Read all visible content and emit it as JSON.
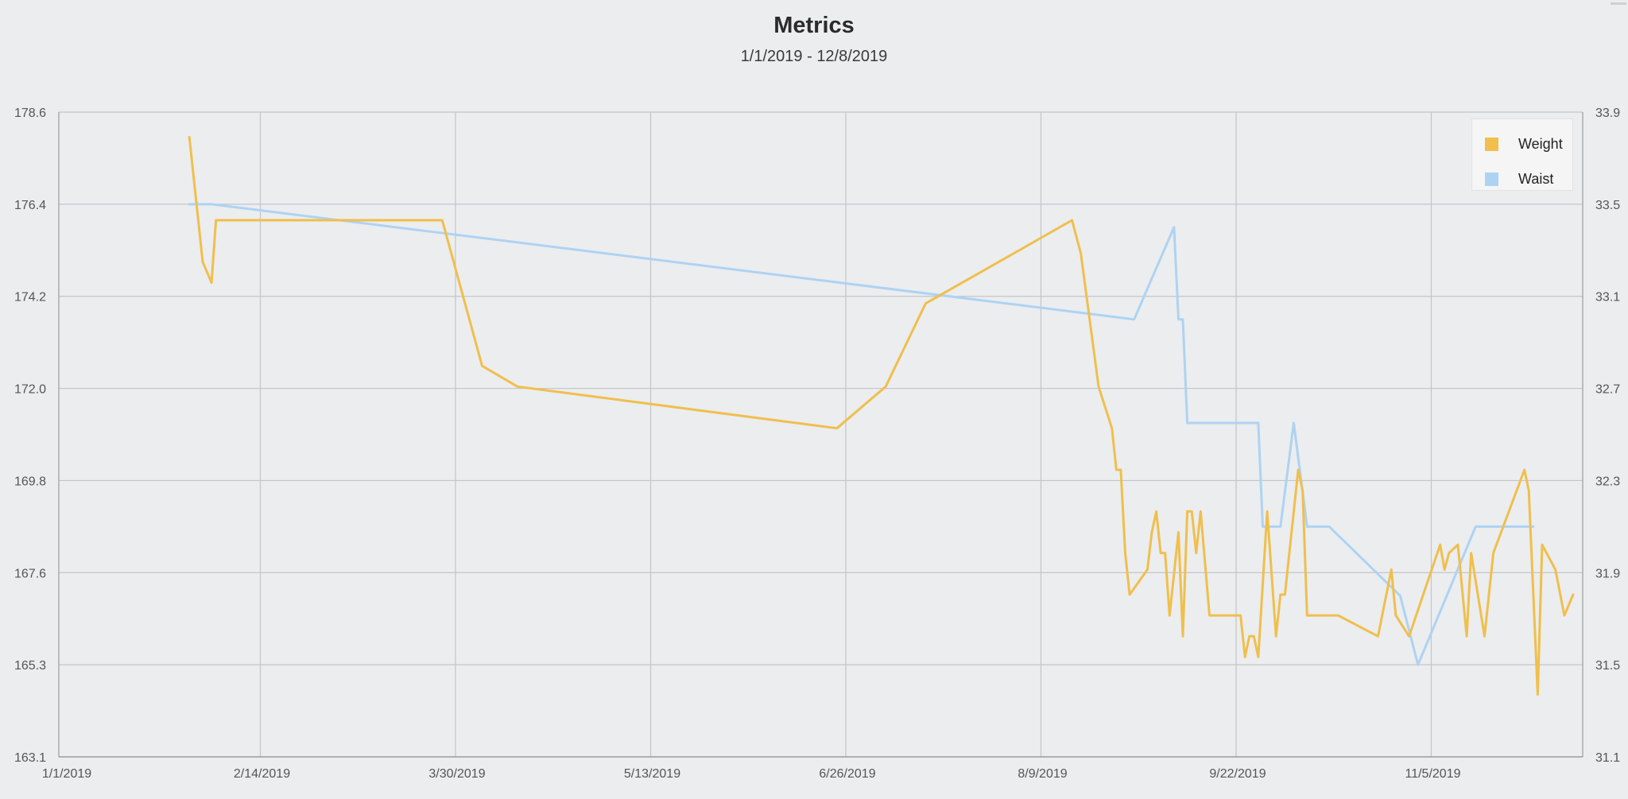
{
  "header": {
    "title": "Metrics",
    "subtitle": "1/1/2019 - 12/8/2019"
  },
  "chart_data": {
    "type": "line",
    "title": "Metrics",
    "subtitle": "1/1/2019 - 12/8/2019",
    "x_ticks": [
      "1/1/2019",
      "2/14/2019",
      "3/30/2019",
      "5/13/2019",
      "6/26/2019",
      "8/9/2019",
      "9/22/2019",
      "11/5/2019"
    ],
    "x_range": [
      "1/1/2019",
      "12/8/2019"
    ],
    "y_left": {
      "ticks": [
        "178.6",
        "176.4",
        "174.2",
        "172.0",
        "169.8",
        "167.6",
        "165.3",
        "163.1"
      ],
      "range": [
        163.1,
        178.6
      ]
    },
    "y_right": {
      "ticks": [
        "33.9",
        "33.5",
        "33.1",
        "32.7",
        "32.3",
        "31.9",
        "31.5",
        "31.1"
      ],
      "range": [
        31.1,
        33.9
      ]
    },
    "grid": true,
    "legend_position": "top-right",
    "series": [
      {
        "name": "Weight",
        "axis": "left",
        "color": "#f0bf4c",
        "points": [
          [
            "1/29/2019",
            178.0
          ],
          [
            "2/1/2019",
            175.0
          ],
          [
            "2/3/2019",
            174.5
          ],
          [
            "2/4/2019",
            176.0
          ],
          [
            "3/27/2019",
            176.0
          ],
          [
            "4/5/2019",
            172.5
          ],
          [
            "4/13/2019",
            172.0
          ],
          [
            "6/24/2019",
            171.0
          ],
          [
            "7/5/2019",
            172.0
          ],
          [
            "7/14/2019",
            174.0
          ],
          [
            "8/16/2019",
            176.0
          ],
          [
            "8/18/2019",
            175.2
          ],
          [
            "8/22/2019",
            172.0
          ],
          [
            "8/25/2019",
            171.0
          ],
          [
            "8/26/2019",
            170.0
          ],
          [
            "8/27/2019",
            170.0
          ],
          [
            "8/28/2019",
            168.0
          ],
          [
            "8/29/2019",
            167.0
          ],
          [
            "9/2/2019",
            167.6
          ],
          [
            "9/3/2019",
            168.5
          ],
          [
            "9/4/2019",
            169.0
          ],
          [
            "9/5/2019",
            168.0
          ],
          [
            "9/6/2019",
            168.0
          ],
          [
            "9/7/2019",
            166.5
          ],
          [
            "9/9/2019",
            168.5
          ],
          [
            "9/10/2019",
            166.0
          ],
          [
            "9/11/2019",
            169.0
          ],
          [
            "9/12/2019",
            169.0
          ],
          [
            "9/13/2019",
            168.0
          ],
          [
            "9/14/2019",
            169.0
          ],
          [
            "9/16/2019",
            166.5
          ],
          [
            "9/23/2019",
            166.5
          ],
          [
            "9/24/2019",
            165.5
          ],
          [
            "9/25/2019",
            166.0
          ],
          [
            "9/26/2019",
            166.0
          ],
          [
            "9/27/2019",
            165.5
          ],
          [
            "9/29/2019",
            169.0
          ],
          [
            "10/1/2019",
            166.0
          ],
          [
            "10/2/2019",
            167.0
          ],
          [
            "10/3/2019",
            167.0
          ],
          [
            "10/6/2019",
            170.0
          ],
          [
            "10/7/2019",
            169.5
          ],
          [
            "10/8/2019",
            166.5
          ],
          [
            "10/15/2019",
            166.5
          ],
          [
            "10/24/2019",
            166.0
          ],
          [
            "10/27/2019",
            167.6
          ],
          [
            "10/28/2019",
            166.5
          ],
          [
            "10/31/2019",
            166.0
          ],
          [
            "11/7/2019",
            168.2
          ],
          [
            "11/8/2019",
            167.6
          ],
          [
            "11/9/2019",
            168.0
          ],
          [
            "11/11/2019",
            168.2
          ],
          [
            "11/13/2019",
            166.0
          ],
          [
            "11/14/2019",
            168.0
          ],
          [
            "11/17/2019",
            166.0
          ],
          [
            "11/19/2019",
            168.0
          ],
          [
            "11/26/2019",
            170.0
          ],
          [
            "11/27/2019",
            169.5
          ],
          [
            "11/29/2019",
            164.6
          ],
          [
            "11/30/2019",
            168.2
          ],
          [
            "12/3/2019",
            167.6
          ],
          [
            "12/5/2019",
            166.5
          ],
          [
            "12/7/2019",
            167.0
          ]
        ]
      },
      {
        "name": "Waist",
        "axis": "right",
        "color": "#aed3f2",
        "points": [
          [
            "1/29/2019",
            33.5
          ],
          [
            "2/3/2019",
            33.5
          ],
          [
            "8/30/2019",
            33.0
          ],
          [
            "9/8/2019",
            33.4
          ],
          [
            "9/9/2019",
            33.0
          ],
          [
            "9/10/2019",
            33.0
          ],
          [
            "9/11/2019",
            32.55
          ],
          [
            "9/27/2019",
            32.55
          ],
          [
            "9/28/2019",
            32.1
          ],
          [
            "10/2/2019",
            32.1
          ],
          [
            "10/5/2019",
            32.55
          ],
          [
            "10/8/2019",
            32.1
          ],
          [
            "10/13/2019",
            32.1
          ],
          [
            "10/29/2019",
            31.8
          ],
          [
            "11/2/2019",
            31.5
          ],
          [
            "11/15/2019",
            32.1
          ],
          [
            "11/28/2019",
            32.1
          ]
        ]
      }
    ]
  }
}
